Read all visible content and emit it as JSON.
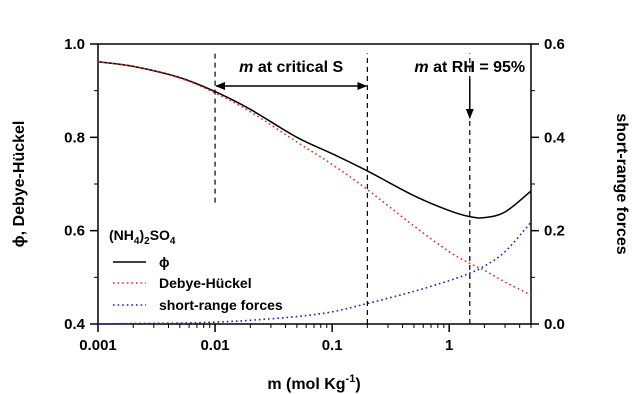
{
  "chart_data": {
    "type": "line",
    "x_scale": "log",
    "x": [
      0.001,
      0.002,
      0.005,
      0.01,
      0.02,
      0.05,
      0.1,
      0.2,
      0.5,
      1,
      1.5,
      2,
      3,
      5
    ],
    "xlim": [
      0.001,
      5
    ],
    "xticks": [
      {
        "value": 0.001,
        "label": "0.001"
      },
      {
        "value": 0.01,
        "label": "0.01"
      },
      {
        "value": 0.1,
        "label": "0.1"
      },
      {
        "value": 1,
        "label": "1"
      }
    ],
    "xlabel_main": "m (mol Kg",
    "xlabel_sup": "-1",
    "xlabel_end": ")",
    "y_left": {
      "label": "ϕ, Debye-Hückel",
      "lim": [
        0.4,
        1.0
      ],
      "ticks": [
        {
          "value": 0.4,
          "label": "0.4"
        },
        {
          "value": 0.6,
          "label": "0.6"
        },
        {
          "value": 0.8,
          "label": "0.8"
        },
        {
          "value": 1.0,
          "label": "1.0"
        }
      ]
    },
    "y_right": {
      "label": "short-range forces",
      "lim": [
        0.0,
        0.6
      ],
      "ticks": [
        {
          "value": 0.0,
          "label": "0.0"
        },
        {
          "value": 0.2,
          "label": "0.2"
        },
        {
          "value": 0.4,
          "label": "0.4"
        },
        {
          "value": 0.6,
          "label": "0.6"
        }
      ]
    },
    "series": [
      {
        "name": "ϕ",
        "axis": "left",
        "style": "solid",
        "color": "#000000",
        "values": [
          0.962,
          0.952,
          0.928,
          0.898,
          0.86,
          0.8,
          0.765,
          0.728,
          0.675,
          0.643,
          0.63,
          0.628,
          0.64,
          0.685
        ]
      },
      {
        "name": "Debye-Hückel",
        "axis": "left",
        "style": "dotted",
        "color": "#e8291c",
        "values": [
          0.962,
          0.952,
          0.927,
          0.895,
          0.855,
          0.79,
          0.742,
          0.688,
          0.61,
          0.555,
          0.53,
          0.515,
          0.49,
          0.462
        ]
      },
      {
        "name": "short-range forces",
        "axis": "right",
        "style": "dotted",
        "color": "#1c1cc8",
        "values": [
          0.0,
          0.001,
          0.002,
          0.004,
          0.008,
          0.016,
          0.026,
          0.044,
          0.07,
          0.093,
          0.109,
          0.124,
          0.155,
          0.218
        ]
      }
    ],
    "legend": {
      "title_main": "(NH",
      "title_sub1": "4",
      "title_mid": ")",
      "title_sub2": "2",
      "title_end": "SO",
      "title_sub3": "4",
      "placement": "lower-left"
    },
    "vertical_markers": [
      {
        "x": 0.01,
        "y_from": 0.66,
        "y_to": 0.98
      },
      {
        "x": 0.2,
        "y_from": 0.4,
        "y_to": 0.98
      },
      {
        "x": 1.5,
        "y_from": 0.4,
        "y_to": 0.98
      }
    ],
    "annotations": {
      "critical": {
        "italic": "m",
        "text": " at critical S",
        "x_from": 0.01,
        "x_to": 0.2
      },
      "rh": {
        "italic": "m",
        "text": " at RH = 95%",
        "x": 1.5
      }
    },
    "grid": false
  }
}
